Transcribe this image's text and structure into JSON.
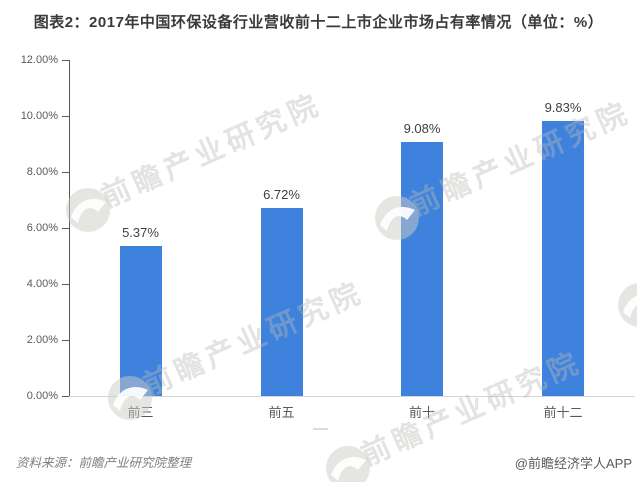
{
  "chart_data": {
    "type": "bar",
    "title": "图表2：2017年中国环保设备行业营收前十二上市企业市场占有率情况（单位：%）",
    "categories": [
      "前三",
      "前五",
      "前十",
      "前十二"
    ],
    "values": [
      5.37,
      6.72,
      9.08,
      9.83
    ],
    "data_labels": [
      "5.37%",
      "6.72%",
      "9.08%",
      "9.83%"
    ],
    "xlabel": "",
    "ylabel": "",
    "ylim": [
      0,
      12
    ],
    "ytick_step": 2,
    "ytick_labels": [
      "0.00%",
      "2.00%",
      "4.00%",
      "6.00%",
      "8.00%",
      "10.00%",
      "12.00%"
    ],
    "grid": false,
    "legend": "none",
    "bar_color": "#3f82dd"
  },
  "footer": {
    "source": "资料来源：前瞻产业研究院整理",
    "credit": "@前瞻经济学人APP"
  },
  "watermark": {
    "text": "前瞻产业研究院",
    "logo": "qianzhan-eye-logo"
  },
  "colors": {
    "bar": "#3f82dd",
    "title_text": "#3a3a3a",
    "axis_line": "#595959",
    "category_axis_line": "#d6d6d6",
    "tick_label": "#595959",
    "value_label": "#404040",
    "source_text": "#7f7f7f",
    "watermark_gray": "#bab9b4"
  }
}
